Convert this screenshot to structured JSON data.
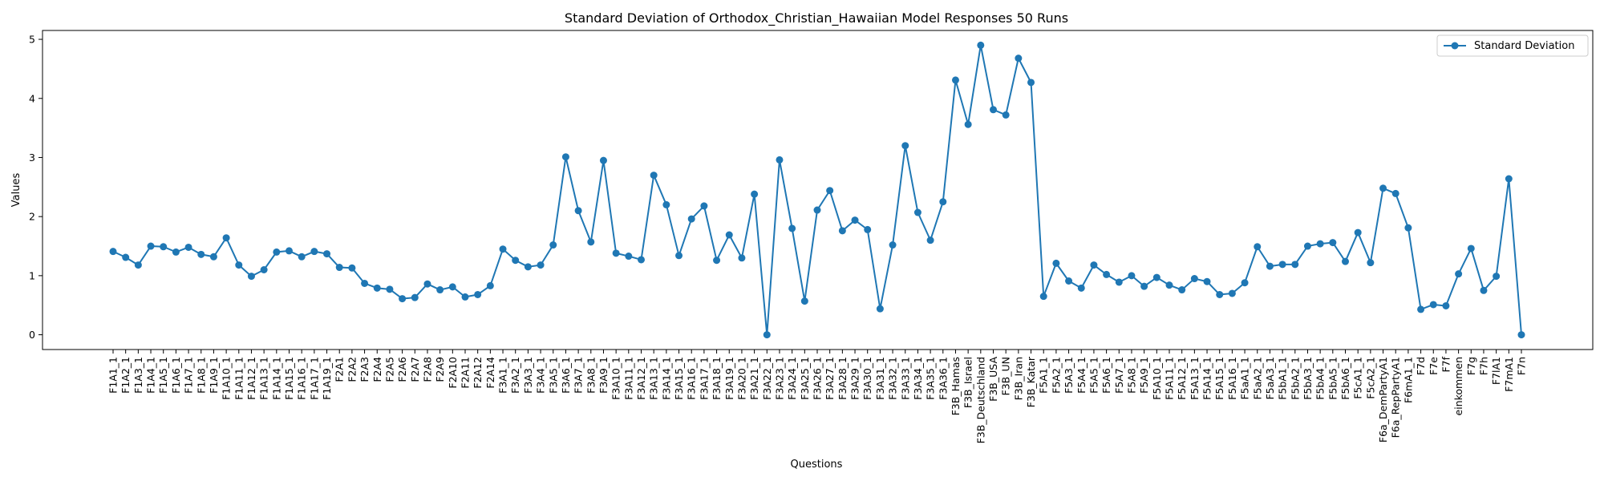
{
  "chart_data": {
    "type": "line",
    "title": "Standard Deviation of Orthodox_Christian_Hawaiian Model Responses 50 Runs",
    "xlabel": "Questions",
    "ylabel": "Values",
    "ylim": [
      -0.25,
      5.15
    ],
    "yticks": [
      0,
      1,
      2,
      3,
      4,
      5
    ],
    "grid": false,
    "legend_position": "top-right",
    "line_color": "#1f77b4",
    "categories": [
      "F1A1_1",
      "F1A2_1",
      "F1A3_1",
      "F1A4_1",
      "F1A5_1",
      "F1A6_1",
      "F1A7_1",
      "F1A8_1",
      "F1A9_1",
      "F1A10_1",
      "F1A11_1",
      "F1A12_1",
      "F1A13_1",
      "F1A14_1",
      "F1A15_1",
      "F1A16_1",
      "F1A17_1",
      "F1A19_1",
      "F2A1",
      "F2A2",
      "F2A3",
      "F2A4",
      "F2A5",
      "F2A6",
      "F2A7",
      "F2A8",
      "F2A9",
      "F2A10",
      "F2A11",
      "F2A12",
      "F2A14",
      "F3A1_1",
      "F3A2_1",
      "F3A3_1",
      "F3A4_1",
      "F3A5_1",
      "F3A6_1",
      "F3A7_1",
      "F3A8_1",
      "F3A9_1",
      "F3A10_1",
      "F3A11_1",
      "F3A12_1",
      "F3A13_1",
      "F3A14_1",
      "F3A15_1",
      "F3A16_1",
      "F3A17_1",
      "F3A18_1",
      "F3A19_1",
      "F3A20_1",
      "F3A21_1",
      "F3A22_1",
      "F3A23_1",
      "F3A24_1",
      "F3A25_1",
      "F3A26_1",
      "F3A27_1",
      "F3A28_1",
      "F3A29_1",
      "F3A30_1",
      "F3A31_1",
      "F3A32_1",
      "F3A33_1",
      "F3A34_1",
      "F3A35_1",
      "F3A36_1",
      "F3B_Hamas",
      "F3B_Israel",
      "F3B_Deutschland",
      "F3B_USA",
      "F3B_UN",
      "F3B_Iran",
      "F3B_Katar",
      "F5A1_1",
      "F5A2_1",
      "F5A3_1",
      "F5A4_1",
      "F5A5_1",
      "F5A6_1",
      "F5A7_1",
      "F5A8_1",
      "F5A9_1",
      "F5A10_1",
      "F5A11_1",
      "F5A12_1",
      "F5A13_1",
      "F5A14_1",
      "F5A15_1",
      "F5A16_1",
      "F5aA1_1",
      "F5aA2_1",
      "F5aA3_1",
      "F5bA1_1",
      "F5bA2_1",
      "F5bA3_1",
      "F5bA4_1",
      "F5bA5_1",
      "F5bA6_1",
      "F5cA1_1",
      "F5cA2_1",
      "F6a_DemPartyA1",
      "F6a_RepPartyA1",
      "F6mA1_1",
      "F7d",
      "F7e",
      "F7f",
      "einkommen",
      "F7g",
      "F7h",
      "F7lA1",
      "F7mA1",
      "F7n"
    ],
    "series": [
      {
        "name": "Standard Deviation",
        "values": [
          1.41,
          1.31,
          1.18,
          1.5,
          1.49,
          1.4,
          1.48,
          1.36,
          1.32,
          1.64,
          1.18,
          0.99,
          1.1,
          1.4,
          1.42,
          1.32,
          1.41,
          1.37,
          1.14,
          1.13,
          0.87,
          0.79,
          0.77,
          0.61,
          0.63,
          0.86,
          0.76,
          0.81,
          0.64,
          0.68,
          0.83,
          1.45,
          1.26,
          1.15,
          1.18,
          1.52,
          3.01,
          2.1,
          1.57,
          2.95,
          1.38,
          1.33,
          1.27,
          2.7,
          2.2,
          1.34,
          1.96,
          2.18,
          1.26,
          1.69,
          1.3,
          2.38,
          0.0,
          2.96,
          1.8,
          0.57,
          2.11,
          2.44,
          1.76,
          1.94,
          1.78,
          0.44,
          1.52,
          3.2,
          2.07,
          1.6,
          2.25,
          4.31,
          3.56,
          4.9,
          3.81,
          3.72,
          4.68,
          4.27,
          0.65,
          1.21,
          0.91,
          0.79,
          1.18,
          1.02,
          0.89,
          1.0,
          0.82,
          0.97,
          0.84,
          0.76,
          0.95,
          0.9,
          0.68,
          0.7,
          0.88,
          1.49,
          1.16,
          1.19,
          1.19,
          1.5,
          1.54,
          1.56,
          1.24,
          1.73,
          1.22,
          2.48,
          2.39,
          1.81,
          0.43,
          0.51,
          0.49,
          1.03,
          1.46,
          0.75,
          0.99,
          2.64,
          0.0
        ]
      }
    ]
  }
}
